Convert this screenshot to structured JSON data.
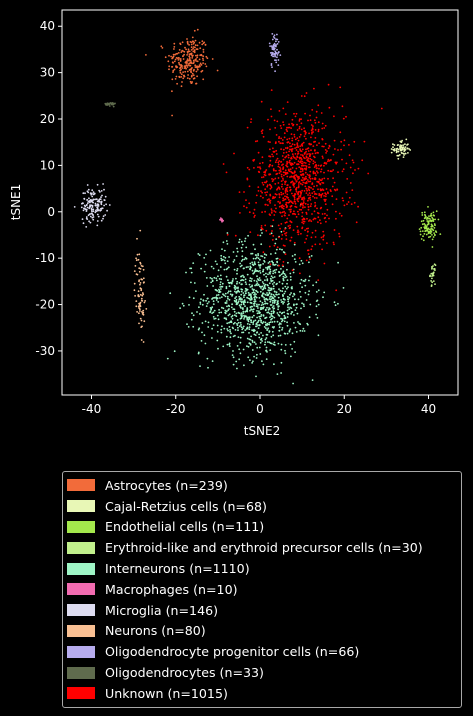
{
  "chart_data": {
    "type": "scatter",
    "xlabel": "tSNE2",
    "ylabel": "tSNE1",
    "xlim": [
      -47,
      47
    ],
    "ylim": [
      -39.5,
      43.5
    ],
    "xticks": [
      -40,
      -20,
      0,
      20,
      40
    ],
    "yticks": [
      -30,
      -20,
      -10,
      0,
      10,
      20,
      30,
      40
    ],
    "legend_position": "below-plot",
    "clusters": [
      {
        "name": "Astrocytes (n=239)",
        "color": "#f26b3a",
        "n": 239,
        "cx": -17,
        "cy": 32.5,
        "sx": 2.5,
        "sy": 2.8
      },
      {
        "name": "Cajal-Retzius cells (n=68)",
        "color": "#e8f7b6",
        "n": 68,
        "cx": 33.5,
        "cy": 13.5,
        "sx": 0.9,
        "sy": 0.9
      },
      {
        "name": "Endothelial cells (n=111)",
        "color": "#a4e84c",
        "n": 111,
        "cx": 40,
        "cy": -3,
        "sx": 1.0,
        "sy": 1.6
      },
      {
        "name": "Erythroid-like and erythroid precursor cells (n=30)",
        "color": "#c1f08c",
        "n": 30,
        "cx": 41,
        "cy": -13.5,
        "sx": 0.3,
        "sy": 1.0
      },
      {
        "name": "Interneurons (n=1110)",
        "color": "#9ef5c6",
        "n": 1110,
        "cx": -1,
        "cy": -19,
        "sx": 6.5,
        "sy": 6.0
      },
      {
        "name": "Macrophages (n=10)",
        "color": "#f26bb0",
        "n": 10,
        "cx": -9,
        "cy": -2,
        "sx": 0.4,
        "sy": 0.4
      },
      {
        "name": "Microglia (n=146)",
        "color": "#dddcf0",
        "n": 146,
        "cx": -39.5,
        "cy": 1.5,
        "sx": 1.5,
        "sy": 1.8
      },
      {
        "name": "Neurons (n=80)",
        "color": "#f9bf92",
        "n": 80,
        "cx": -28.5,
        "cy": -17,
        "sx": 0.6,
        "sy": 4.5
      },
      {
        "name": "Oligodendrocyte progenitor cells (n=66)",
        "color": "#b7acee",
        "n": 66,
        "cx": 3.5,
        "cy": 35,
        "sx": 0.6,
        "sy": 2.0
      },
      {
        "name": "Oligodendrocytes (n=33)",
        "color": "#5f6b4d",
        "n": 33,
        "cx": -35.5,
        "cy": 23.2,
        "sx": 0.6,
        "sy": 0.2
      },
      {
        "name": "Unknown (n=1015)",
        "color": "#ff0000",
        "n": 1015,
        "cx": 9,
        "cy": 7,
        "sx": 5.5,
        "sy": 7.0
      }
    ]
  }
}
